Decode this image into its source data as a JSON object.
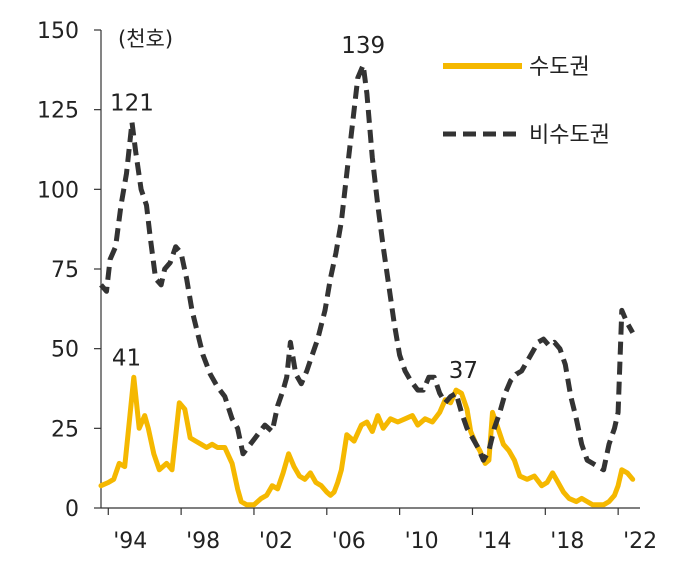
{
  "chart_data": {
    "type": "line",
    "unit_label": "(천호)",
    "ylim": [
      0,
      150
    ],
    "xlim": [
      1993.6,
      2023.2
    ],
    "yticks": [
      0,
      25,
      50,
      75,
      100,
      125,
      150
    ],
    "xticks": [
      {
        "value": 1994,
        "label": "'94"
      },
      {
        "value": 1998,
        "label": "'98"
      },
      {
        "value": 2002,
        "label": "'02"
      },
      {
        "value": 2006,
        "label": "'06"
      },
      {
        "value": 2010,
        "label": "'10"
      },
      {
        "value": 2014,
        "label": "'14"
      },
      {
        "value": 2018,
        "label": "'18"
      },
      {
        "value": 2022,
        "label": "'22"
      }
    ],
    "legend_position": "top-right",
    "series": [
      {
        "name": "수도권",
        "color": "#F5B800",
        "style": "solid",
        "x": [
          1993.6,
          1994.0,
          1994.3,
          1994.6,
          1994.9,
          1995.1,
          1995.4,
          1995.7,
          1996.0,
          1996.2,
          1996.5,
          1996.8,
          1997.0,
          1997.2,
          1997.5,
          1997.9,
          1998.2,
          1998.5,
          1998.8,
          1999.1,
          1999.4,
          1999.7,
          2000.0,
          2000.4,
          2000.8,
          2001.1,
          2001.3,
          2001.6,
          2002.0,
          2002.4,
          2002.7,
          2003.0,
          2003.3,
          2003.6,
          2003.9,
          2004.2,
          2004.5,
          2004.8,
          2005.1,
          2005.4,
          2005.7,
          2006.0,
          2006.2,
          2006.4,
          2006.6,
          2006.8,
          2007.1,
          2007.5,
          2007.9,
          2008.2,
          2008.5,
          2008.8,
          2009.1,
          2009.5,
          2009.9,
          2010.3,
          2010.7,
          2011.0,
          2011.4,
          2011.8,
          2012.2,
          2012.5,
          2012.8,
          2013.1,
          2013.4,
          2013.7,
          2013.9,
          2014.2,
          2014.4,
          2014.7,
          2014.9,
          2015.1,
          2015.4,
          2015.7,
          2016.0,
          2016.3,
          2016.6,
          2017.0,
          2017.4,
          2017.8,
          2018.1,
          2018.4,
          2018.7,
          2019.0,
          2019.3,
          2019.7,
          2020.0,
          2020.3,
          2020.6,
          2020.9,
          2021.2,
          2021.5,
          2021.8,
          2022.0,
          2022.2,
          2022.5,
          2022.8
        ],
        "values": [
          7,
          8,
          9,
          14,
          13,
          24,
          41,
          25,
          29,
          25,
          17,
          12,
          13,
          14,
          12,
          33,
          31,
          22,
          21,
          20,
          19,
          20,
          19,
          19,
          14,
          6,
          2,
          1,
          1,
          3,
          4,
          7,
          6,
          11,
          17,
          13,
          10,
          9,
          11,
          8,
          7,
          5,
          4,
          5,
          8,
          12,
          23,
          21,
          26,
          27,
          24,
          29,
          25,
          28,
          27,
          28,
          29,
          26,
          28,
          27,
          30,
          34,
          33,
          37,
          36,
          31,
          24,
          20,
          18,
          14,
          15,
          30,
          25,
          20,
          18,
          15,
          10,
          9,
          10,
          7,
          8,
          11,
          8,
          5,
          3,
          2,
          3,
          2,
          1,
          1,
          1,
          2,
          4,
          7,
          12,
          11,
          9
        ]
      },
      {
        "name": "비수도권",
        "color": "#333333",
        "style": "dashed",
        "x": [
          1993.6,
          1993.9,
          1994.1,
          1994.4,
          1994.7,
          1995.0,
          1995.3,
          1995.5,
          1995.8,
          1996.1,
          1996.3,
          1996.6,
          1996.9,
          1997.1,
          1997.4,
          1997.7,
          1998.0,
          1998.3,
          1998.6,
          1998.9,
          1999.2,
          1999.6,
          2000.0,
          2000.4,
          2000.8,
          2001.1,
          2001.4,
          2001.8,
          2002.2,
          2002.6,
          2003.0,
          2003.3,
          2003.6,
          2003.8,
          2004.0,
          2004.3,
          2004.6,
          2004.9,
          2005.2,
          2005.5,
          2005.9,
          2006.2,
          2006.5,
          2006.8,
          2007.1,
          2007.4,
          2007.7,
          2008.0,
          2008.2,
          2008.5,
          2008.8,
          2009.1,
          2009.4,
          2009.7,
          2010.0,
          2010.3,
          2010.6,
          2011.0,
          2011.3,
          2011.6,
          2011.9,
          2012.2,
          2012.5,
          2012.8,
          2013.1,
          2013.4,
          2013.7,
          2014.0,
          2014.3,
          2014.6,
          2014.9,
          2015.2,
          2015.5,
          2015.8,
          2016.1,
          2016.4,
          2016.7,
          2017.0,
          2017.3,
          2017.6,
          2017.9,
          2018.2,
          2018.5,
          2018.8,
          2019.1,
          2019.4,
          2019.7,
          2020.0,
          2020.3,
          2020.6,
          2020.9,
          2021.2,
          2021.5,
          2021.8,
          2022.0,
          2022.2,
          2022.5,
          2022.8
        ],
        "values": [
          70,
          68,
          78,
          82,
          95,
          105,
          121,
          112,
          100,
          95,
          85,
          72,
          70,
          75,
          77,
          82,
          80,
          72,
          62,
          55,
          48,
          42,
          38,
          35,
          28,
          25,
          17,
          20,
          23,
          26,
          24,
          32,
          37,
          41,
          52,
          42,
          39,
          43,
          48,
          53,
          62,
          72,
          80,
          90,
          105,
          120,
          135,
          139,
          130,
          110,
          95,
          82,
          70,
          58,
          48,
          43,
          40,
          37,
          37,
          41,
          41,
          36,
          33,
          35,
          36,
          30,
          25,
          22,
          19,
          15,
          18,
          25,
          30,
          36,
          40,
          42,
          43,
          46,
          49,
          52,
          53,
          51,
          52,
          50,
          45,
          35,
          28,
          20,
          15,
          14,
          13,
          12,
          20,
          25,
          30,
          62,
          58,
          55
        ]
      }
    ],
    "annotations": [
      {
        "text": "121",
        "x": 1995.3,
        "y": 121
      },
      {
        "text": "41",
        "x": 1995.0,
        "y": 41
      },
      {
        "text": "139",
        "x": 2008.0,
        "y": 139
      },
      {
        "text": "37",
        "x": 2013.5,
        "y": 37
      }
    ]
  }
}
